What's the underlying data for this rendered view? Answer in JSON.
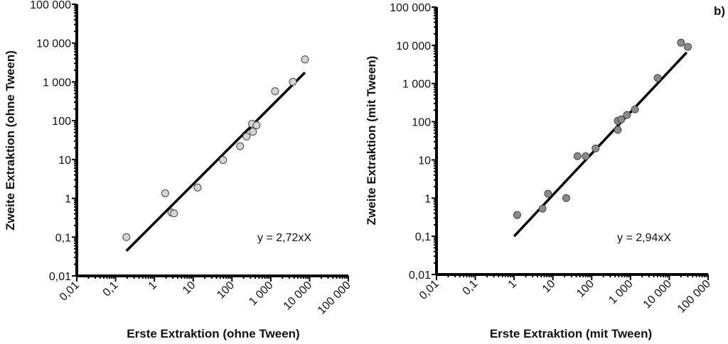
{
  "chart_data": [
    {
      "type": "scatter",
      "panel_label": "",
      "xlabel": "Erste Extraktion (ohne Tween)",
      "ylabel": "Zweite Extraktion (ohne Tween)",
      "xscale": "log",
      "yscale": "log",
      "xlim": [
        0.01,
        100000
      ],
      "ylim": [
        0.01,
        100000
      ],
      "xticks": [
        0.01,
        0.1,
        1,
        10,
        100,
        1000,
        10000,
        100000
      ],
      "xtick_labels": [
        "0,01",
        "0,1",
        "1",
        "10",
        "100",
        "1 000",
        "10 000",
        "100 000"
      ],
      "yticks": [
        0.01,
        0.1,
        1,
        10,
        100,
        1000,
        10000,
        100000
      ],
      "ytick_labels": [
        "0,01",
        "0,1",
        "1",
        "10",
        "100",
        "1 000",
        "10 000",
        "100 000"
      ],
      "annotation": "y = 2,72xX",
      "marker_color": "#d4d4d4",
      "points": [
        [
          0.19,
          0.1
        ],
        [
          1.9,
          1.35
        ],
        [
          2.75,
          0.43
        ],
        [
          3.2,
          0.41
        ],
        [
          13,
          1.9
        ],
        [
          59,
          9.7
        ],
        [
          162,
          22
        ],
        [
          237,
          39
        ],
        [
          347,
          52
        ],
        [
          330,
          83
        ],
        [
          430,
          76
        ],
        [
          1290,
          575
        ],
        [
          3700,
          1000
        ],
        [
          7600,
          3800
        ]
      ],
      "fit_line": [
        [
          0.19,
          0.044
        ],
        [
          7600,
          1740
        ]
      ]
    },
    {
      "type": "scatter",
      "panel_label": "b)",
      "xlabel": "Erste Extraktion (mit Tween)",
      "ylabel": "Zweite Extraktion (mit Tween)",
      "xscale": "log",
      "yscale": "log",
      "xlim": [
        0.01,
        100000
      ],
      "ylim": [
        0.01,
        100000
      ],
      "xticks": [
        0.01,
        0.1,
        1,
        10,
        100,
        1000,
        10000,
        100000
      ],
      "xtick_labels": [
        "0,01",
        "0,1",
        "1",
        "10",
        "100",
        "1 000",
        "10 000",
        "100 000"
      ],
      "yticks": [
        0.01,
        0.1,
        1,
        10,
        100,
        1000,
        10000,
        100000
      ],
      "ytick_labels": [
        "0,01",
        "0,1",
        "1",
        "10",
        "100",
        "1 000",
        "10 000",
        "100 000"
      ],
      "annotation": "y = 2,94xX",
      "marker_color": "#8a8a8a",
      "points": [
        [
          1.2,
          0.36
        ],
        [
          5.4,
          0.53
        ],
        [
          7.5,
          1.3
        ],
        [
          22,
          1.0
        ],
        [
          43,
          12.5
        ],
        [
          70,
          12.5
        ],
        [
          126,
          20
        ],
        [
          470,
          61
        ],
        [
          470,
          105
        ],
        [
          575,
          115
        ],
        [
          810,
          150
        ],
        [
          1300,
          210
        ],
        [
          5000,
          1400
        ],
        [
          20000,
          11700
        ],
        [
          30000,
          9100
        ]
      ],
      "fit_line": [
        [
          1,
          0.1
        ],
        [
          28000,
          6500
        ]
      ]
    }
  ]
}
